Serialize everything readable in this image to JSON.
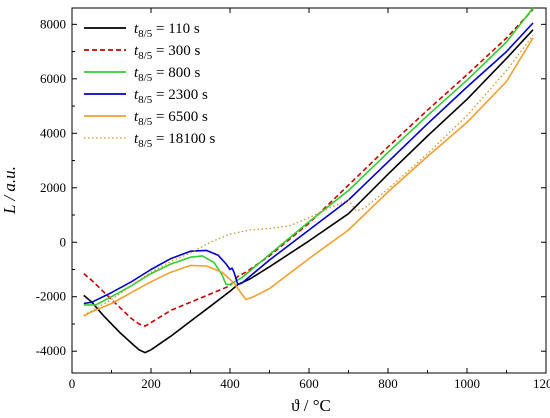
{
  "chart_data": {
    "type": "line",
    "xlabel": "ϑ / °C",
    "ylabel": "L / a.u.",
    "xlim": [
      0,
      1200
    ],
    "ylim": [
      -4800,
      8600
    ],
    "xticks": [
      0,
      200,
      400,
      600,
      800,
      1000,
      1200
    ],
    "yticks": [
      -4000,
      -2000,
      0,
      2000,
      4000,
      6000,
      8000
    ],
    "legend_position": "top-left",
    "grid": false,
    "series": [
      {
        "name": "t8/5 = 110 s",
        "name_var": "t",
        "name_sub": "8/5",
        "name_rest": " = 110 s",
        "color": "#000000",
        "dash": "solid",
        "x": [
          30,
          50,
          80,
          120,
          150,
          170,
          185,
          200,
          250,
          300,
          350,
          400,
          420,
          450,
          500,
          600,
          700,
          800,
          900,
          1000,
          1100,
          1167
        ],
        "y": [
          -1950,
          -2200,
          -2700,
          -3300,
          -3700,
          -3950,
          -4050,
          -3950,
          -3450,
          -2900,
          -2350,
          -1800,
          -1550,
          -1350,
          -900,
          50,
          1050,
          2500,
          3900,
          5250,
          6750,
          7800
        ]
      },
      {
        "name": "t8/5 = 300 s",
        "name_var": "t",
        "name_sub": "8/5",
        "name_rest": " = 300 s",
        "color": "#cc0000",
        "dash": "dashed",
        "x": [
          30,
          50,
          100,
          150,
          170,
          185,
          200,
          250,
          300,
          350,
          400,
          420,
          440,
          500,
          600,
          700,
          800,
          900,
          1000,
          1100,
          1167
        ],
        "y": [
          -1150,
          -1400,
          -2100,
          -2800,
          -3000,
          -3080,
          -2950,
          -2500,
          -2200,
          -1900,
          -1600,
          -1250,
          -1100,
          -500,
          700,
          2100,
          3500,
          4850,
          6150,
          7500,
          8550
        ]
      },
      {
        "name": "t8/5 = 800 s",
        "name_var": "t",
        "name_sub": "8/5",
        "name_rest": " = 800 s",
        "color": "#33cc33",
        "dash": "solid",
        "x": [
          30,
          60,
          100,
          150,
          200,
          250,
          300,
          330,
          360,
          380,
          390,
          400,
          430,
          500,
          600,
          700,
          800,
          900,
          1000,
          1100,
          1167
        ],
        "y": [
          -2300,
          -2300,
          -2000,
          -1600,
          -1150,
          -800,
          -550,
          -500,
          -750,
          -1200,
          -1550,
          -1550,
          -1300,
          -450,
          750,
          1900,
          3300,
          4650,
          5950,
          7350,
          8600
        ]
      },
      {
        "name": "t8/5 = 2300 s",
        "name_var": "t",
        "name_sub": "8/5",
        "name_rest": " = 2300 s",
        "color": "#0000cc",
        "dash": "solid",
        "x": [
          30,
          50,
          100,
          150,
          200,
          250,
          300,
          340,
          370,
          390,
          400,
          405,
          410,
          420,
          430,
          500,
          600,
          700,
          800,
          900,
          1000,
          1100,
          1167
        ],
        "y": [
          -2250,
          -2200,
          -1850,
          -1450,
          -1000,
          -600,
          -330,
          -300,
          -480,
          -800,
          -1000,
          -950,
          -1100,
          -1550,
          -1500,
          -650,
          450,
          1550,
          2950,
          4350,
          5700,
          7000,
          8050
        ]
      },
      {
        "name": "t8/5 = 6500 s",
        "name_var": "t",
        "name_sub": "8/5",
        "name_rest": " = 6500 s",
        "color": "#f0a030",
        "dash": "solid",
        "x": [
          30,
          50,
          100,
          150,
          200,
          250,
          300,
          340,
          380,
          410,
          430,
          440,
          460,
          500,
          600,
          700,
          800,
          900,
          1000,
          1100,
          1167
        ],
        "y": [
          -2700,
          -2550,
          -2250,
          -1850,
          -1450,
          -1100,
          -850,
          -870,
          -1100,
          -1500,
          -1900,
          -2100,
          -2000,
          -1700,
          -600,
          450,
          1850,
          3150,
          4400,
          5900,
          7500
        ]
      },
      {
        "name": "t8/5 = 18100 s",
        "name_var": "t",
        "name_sub": "8/5",
        "name_rest": " = 18100 s",
        "color": "#d4922a",
        "dash": "dotted",
        "x": [
          30,
          40,
          100,
          150,
          200,
          250,
          300,
          350,
          400,
          450,
          500,
          550,
          600,
          650,
          700,
          710,
          720,
          740,
          800,
          900,
          1000,
          1100,
          1167
        ],
        "y": [
          -2700,
          -2600,
          -2100,
          -1600,
          -1100,
          -700,
          -400,
          0,
          300,
          450,
          500,
          600,
          900,
          1250,
          1550,
          1350,
          1150,
          1250,
          1950,
          3250,
          4650,
          6300,
          7600
        ]
      }
    ]
  }
}
